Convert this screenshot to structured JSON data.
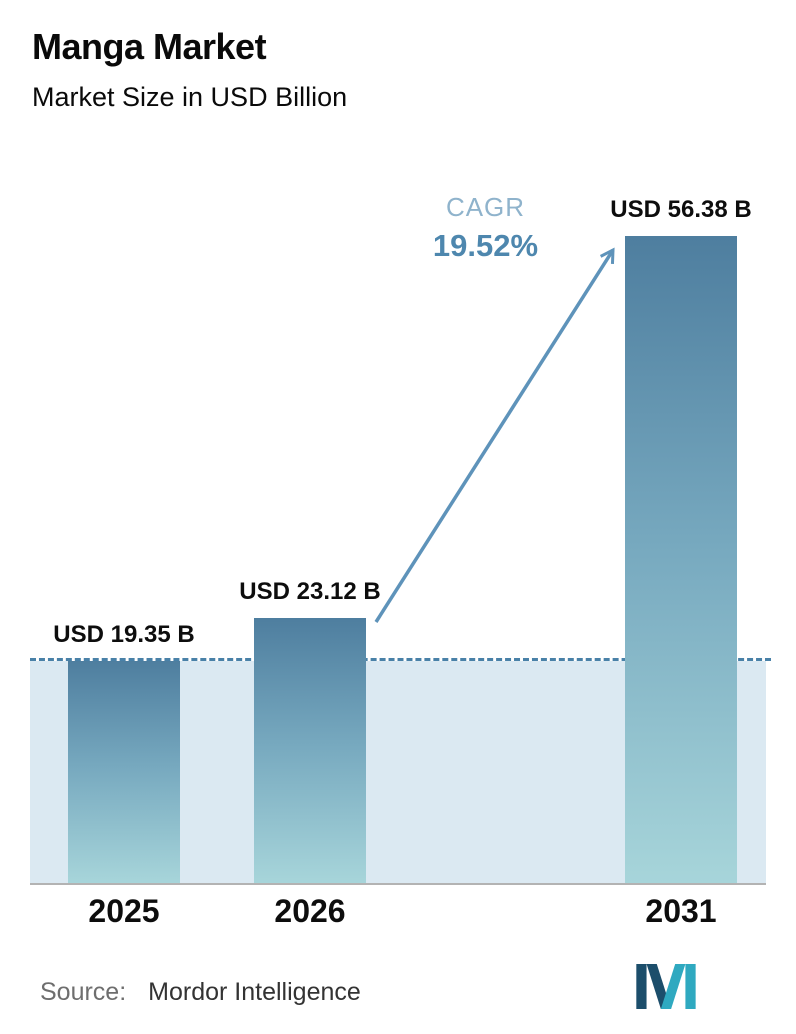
{
  "chart_data": {
    "type": "bar",
    "title": "Manga Market",
    "subtitle": "Market Size in USD Billion",
    "unit": "USD Billion",
    "categories": [
      "2025",
      "2026",
      "2031"
    ],
    "values": [
      19.35,
      23.12,
      56.38
    ],
    "value_labels": [
      "USD 19.35 B",
      "USD 23.12 B",
      "USD 56.38 B"
    ],
    "ylim": [
      0,
      63
    ],
    "grid": false,
    "legend": false,
    "baseline_dashed_at": 19.35,
    "cagr": {
      "label": "CAGR",
      "value": "19.52%"
    },
    "colors": {
      "bar_gradient_top": "#4e7e9f",
      "bar_gradient_bottom": "#a7d5da",
      "shaded_area": "#dbe9f2",
      "dashed_line": "#4981a8",
      "arrow": "#5e93ba",
      "cagr_label": "#8fb3cc",
      "cagr_value": "#4e87ae",
      "axis_line": "#b3b3b3",
      "logo_navy": "#1c4e6b",
      "logo_teal": "#2fa9c0"
    }
  },
  "footer": {
    "source_label": "Source:",
    "source_value": "Mordor Intelligence",
    "logo": "mordor-intelligence-logo"
  }
}
